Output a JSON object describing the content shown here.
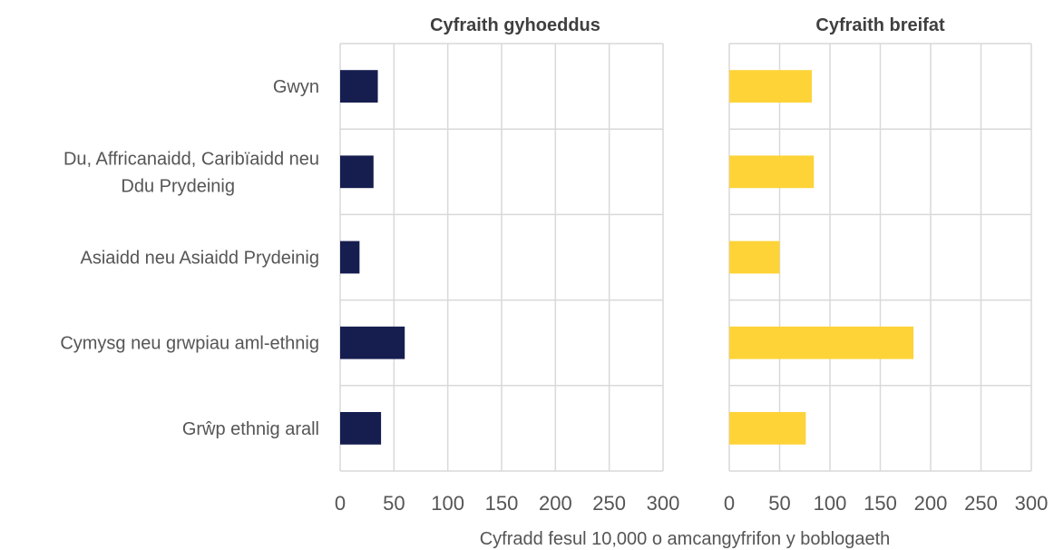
{
  "chart_data": {
    "type": "bar",
    "orientation": "horizontal",
    "categories": [
      "Gwyn",
      "Du, Affricanaidd, Caribïaidd neu\nDdu Prydeinig",
      "Asiaidd neu Asiaidd Prydeinig",
      "Cymysg neu grwpiau aml-ethnig",
      "Grŵp ethnig arall"
    ],
    "panels": [
      {
        "title": "Cyfraith gyhoeddus",
        "color": "#161d4f",
        "values": [
          35,
          31,
          18,
          60,
          38
        ]
      },
      {
        "title": "Cyfraith breifat",
        "color": "#fdd337",
        "values": [
          82,
          84,
          50,
          183,
          76
        ]
      }
    ],
    "xlim": [
      0,
      300
    ],
    "xticks": [
      0,
      50,
      100,
      150,
      200,
      250,
      300
    ],
    "xlabel": "Cyfradd fesul 10,000 o amcangyfrifon y boblogaeth",
    "grid": true,
    "legend": "none"
  }
}
